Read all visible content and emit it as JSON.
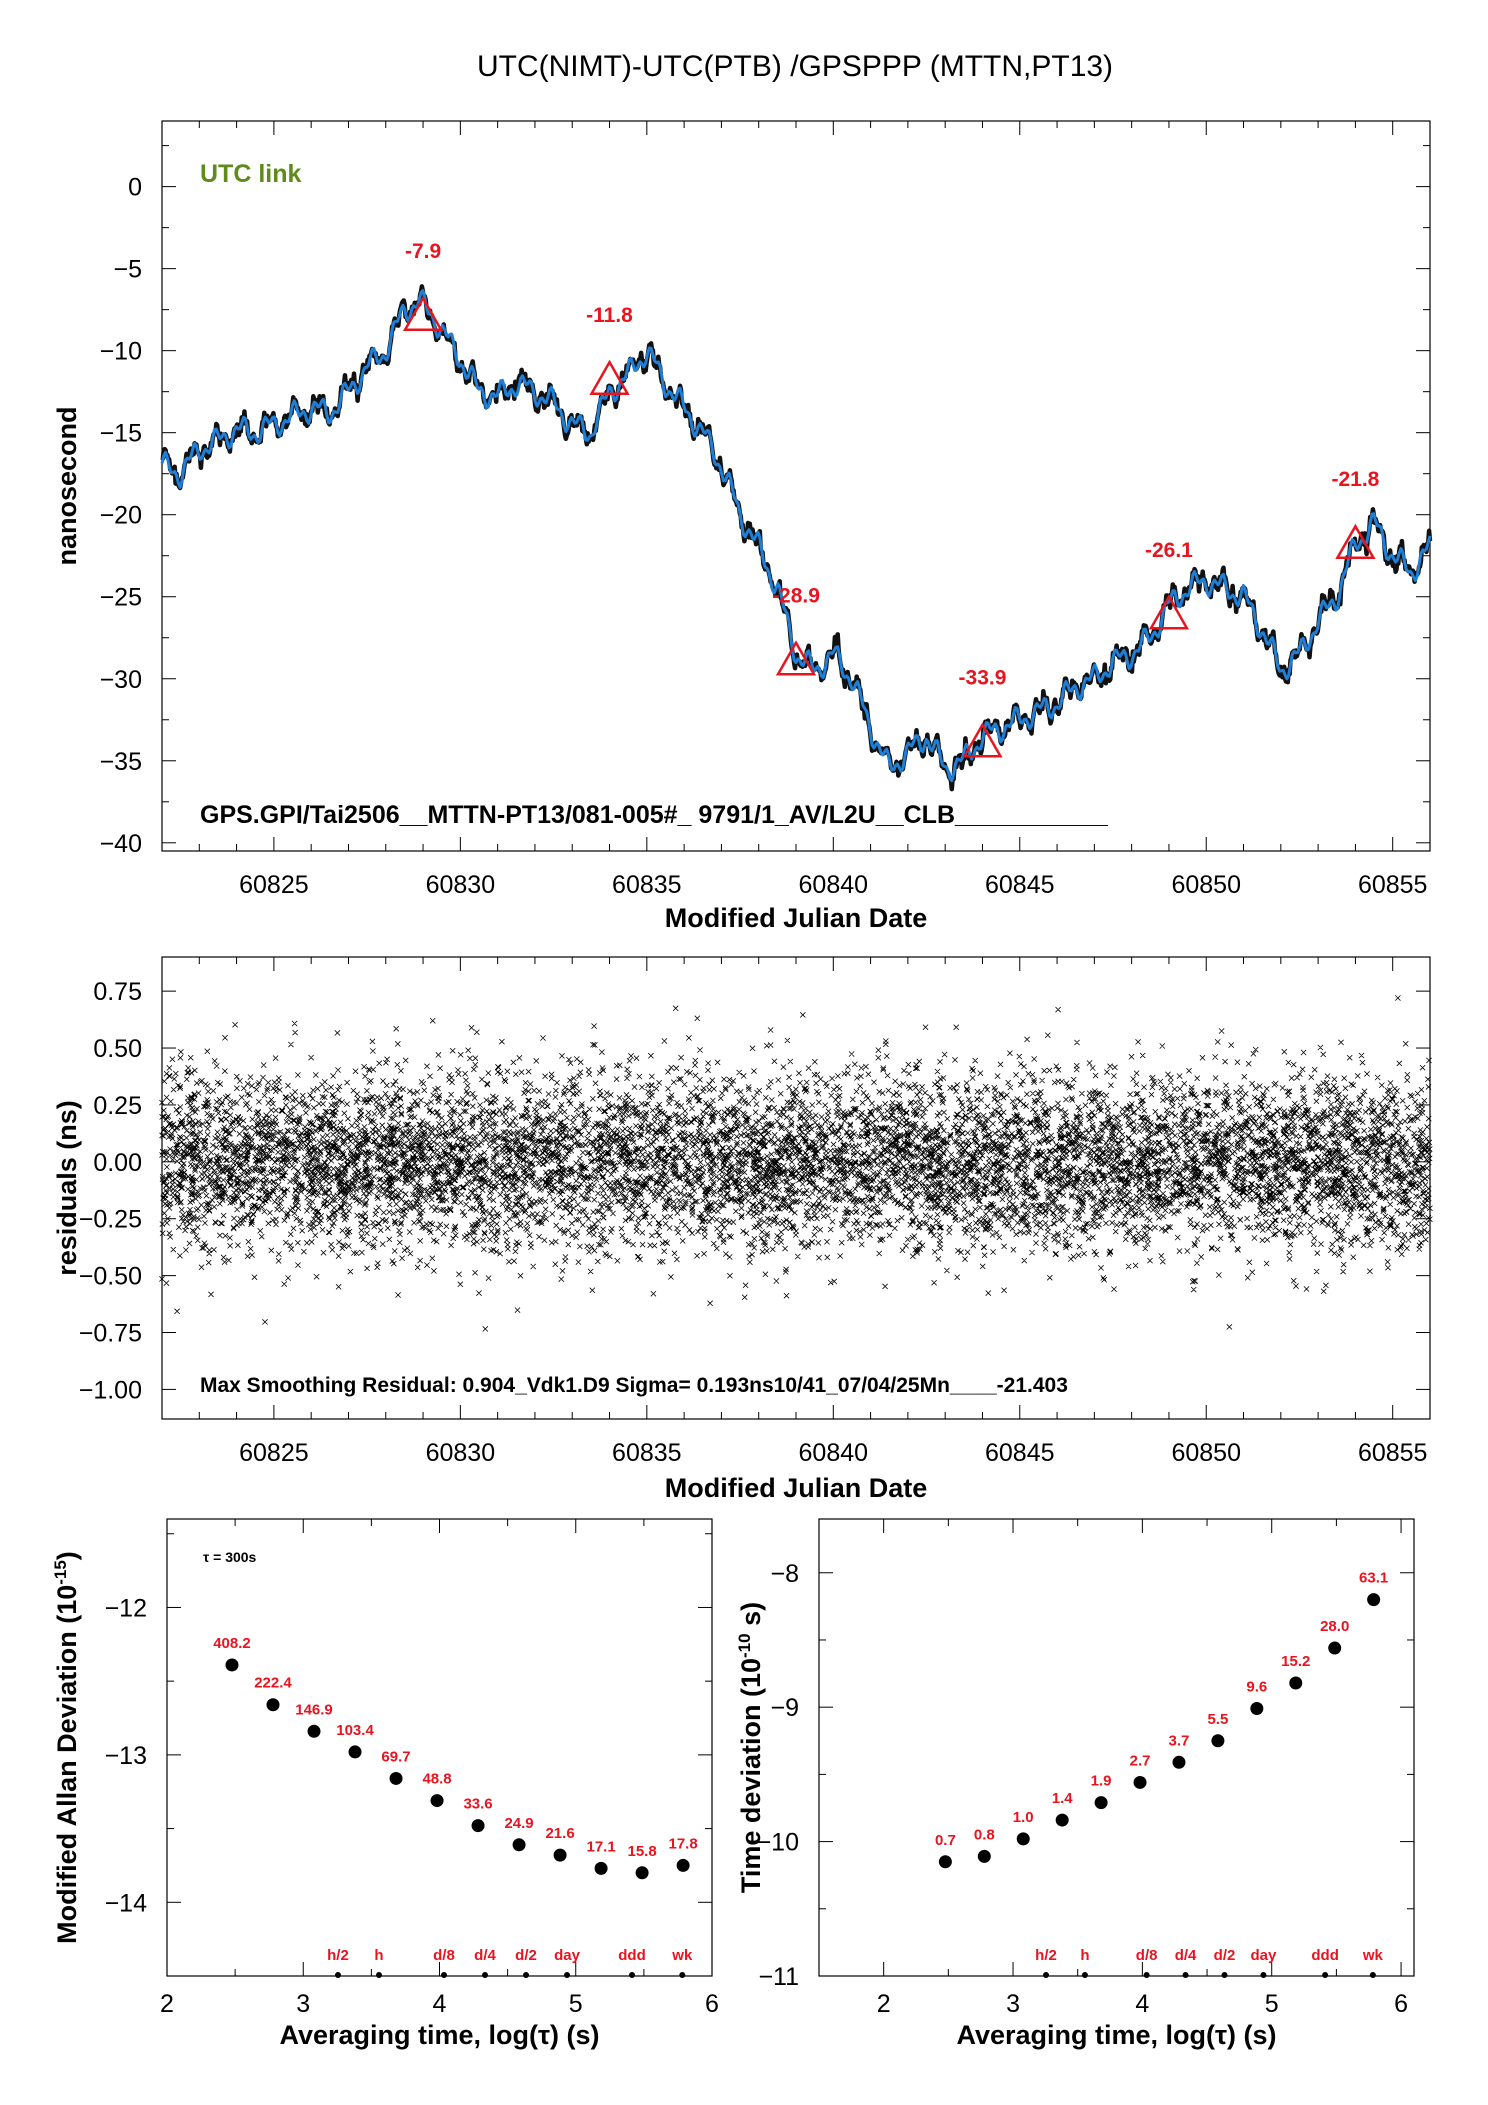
{
  "title": "UTC(NIMT)-UTC(PTB)  /GPSPPP  (MTTN,PT13)",
  "colors": {
    "accent_red": "#e8141e",
    "line_blue": "#1f7fd6",
    "link_green": "#5f8a1c",
    "marker": "#000000"
  },
  "chart_data": [
    {
      "type": "line",
      "name": "main_time_series",
      "annotation": "UTC link",
      "xlabel": "Modified Julian Date",
      "ylabel": "nanosecond",
      "xlim": [
        60822,
        60856
      ],
      "ylim": [
        -40.5,
        4
      ],
      "xticks": [
        60825,
        60830,
        60835,
        60840,
        60845,
        60850,
        60855
      ],
      "yticks": [
        0,
        -5,
        -10,
        -15,
        -20,
        -25,
        -30,
        -35,
        -40
      ],
      "ytick_labels": [
        "0",
        "−5",
        "−10",
        "−15",
        "−20",
        "−25",
        "−30",
        "−35",
        "−40"
      ],
      "footer": "GPS.GPI/Tai2506__MTTN-PT13/081-005#_  9791/1_AV/L2U__CLB___________",
      "series_points": [
        [
          60822.0,
          -17.0
        ],
        [
          60822.5,
          -17.5
        ],
        [
          60823.0,
          -16.0
        ],
        [
          60823.5,
          -15.5
        ],
        [
          60824.0,
          -14.8
        ],
        [
          60824.5,
          -15.0
        ],
        [
          60825.0,
          -14.5
        ],
        [
          60825.5,
          -14.0
        ],
        [
          60826.0,
          -13.5
        ],
        [
          60826.5,
          -13.8
        ],
        [
          60827.0,
          -12.5
        ],
        [
          60827.5,
          -11.0
        ],
        [
          60828.0,
          -10.0
        ],
        [
          60828.5,
          -7.5
        ],
        [
          60828.9,
          -7.0
        ],
        [
          60829.3,
          -8.0
        ],
        [
          60829.7,
          -9.5
        ],
        [
          60830.0,
          -10.5
        ],
        [
          60830.5,
          -12.5
        ],
        [
          60831.0,
          -12.8
        ],
        [
          60831.5,
          -12.0
        ],
        [
          60832.0,
          -12.5
        ],
        [
          60832.5,
          -13.2
        ],
        [
          60833.0,
          -14.5
        ],
        [
          60833.5,
          -15.0
        ],
        [
          60834.0,
          -12.5
        ],
        [
          60834.5,
          -11.5
        ],
        [
          60835.0,
          -10.0
        ],
        [
          60835.5,
          -12.0
        ],
        [
          60836.0,
          -13.5
        ],
        [
          60836.5,
          -15.0
        ],
        [
          60837.0,
          -17.0
        ],
        [
          60837.5,
          -20.0
        ],
        [
          60838.0,
          -22.0
        ],
        [
          60838.5,
          -24.5
        ],
        [
          60839.0,
          -28.5
        ],
        [
          60839.5,
          -29.5
        ],
        [
          60840.0,
          -28.5
        ],
        [
          60840.5,
          -30.0
        ],
        [
          60841.0,
          -33.0
        ],
        [
          60841.5,
          -35.5
        ],
        [
          60842.0,
          -34.5
        ],
        [
          60842.5,
          -33.5
        ],
        [
          60843.0,
          -35.5
        ],
        [
          60843.5,
          -35.0
        ],
        [
          60844.0,
          -33.5
        ],
        [
          60844.5,
          -33.0
        ],
        [
          60845.0,
          -32.5
        ],
        [
          60845.5,
          -32.0
        ],
        [
          60846.0,
          -31.5
        ],
        [
          60846.5,
          -30.5
        ],
        [
          60847.0,
          -30.0
        ],
        [
          60847.5,
          -29.0
        ],
        [
          60848.0,
          -28.5
        ],
        [
          60848.5,
          -27.5
        ],
        [
          60849.0,
          -25.5
        ],
        [
          60849.5,
          -24.5
        ],
        [
          60850.0,
          -24.0
        ],
        [
          60850.5,
          -24.5
        ],
        [
          60851.0,
          -25.0
        ],
        [
          60851.5,
          -27.0
        ],
        [
          60852.0,
          -29.5
        ],
        [
          60852.5,
          -28.5
        ],
        [
          60853.0,
          -26.5
        ],
        [
          60853.5,
          -25.0
        ],
        [
          60854.0,
          -21.8
        ],
        [
          60854.5,
          -20.5
        ],
        [
          60855.0,
          -22.5
        ],
        [
          60855.5,
          -23.5
        ],
        [
          60856.0,
          -22.0
        ]
      ],
      "markers": [
        {
          "x": 60829.0,
          "y": -7.9,
          "label": "-7.9"
        },
        {
          "x": 60834.0,
          "y": -11.8,
          "label": "-11.8"
        },
        {
          "x": 60839.0,
          "y": -28.9,
          "label": "-28.9"
        },
        {
          "x": 60844.0,
          "y": -33.9,
          "label": "-33.9"
        },
        {
          "x": 60849.0,
          "y": -26.1,
          "label": "-26.1"
        },
        {
          "x": 60854.0,
          "y": -21.8,
          "label": "-21.8"
        }
      ]
    },
    {
      "type": "scatter",
      "name": "residuals",
      "xlabel": "Modified Julian Date",
      "ylabel": "residuals (ns)",
      "xlim": [
        60822,
        60856
      ],
      "ylim": [
        -1.13,
        0.9
      ],
      "xticks": [
        60825,
        60830,
        60835,
        60840,
        60845,
        60850,
        60855
      ],
      "yticks": [
        0.75,
        0.5,
        0.25,
        0.0,
        -0.25,
        -0.5,
        -0.75,
        -1.0
      ],
      "ytick_labels": [
        "0.75",
        "0.50",
        "0.25",
        "0.00",
        "−0.25",
        "−0.50",
        "−0.75",
        "−1.00"
      ],
      "noise_sigma_ns": 0.193,
      "max_abs_residual_ns": 0.904,
      "footer": "Max Smoothing Residual: 0.904_Vdk1.D9  Sigma= 0.193ns10/41_07/04/25Mn____-21.403"
    },
    {
      "type": "scatter",
      "name": "modified_allan_deviation",
      "xlabel": "Averaging time, log(τ) (s)",
      "ylabel": "Modified Allan Deviation (10",
      "ylabel_superscript": "-15",
      "ylabel_tail": ")",
      "note": "τ = 300s",
      "xlim": [
        2,
        6
      ],
      "ylim": [
        -14.5,
        -11.4
      ],
      "xticks": [
        2,
        3,
        4,
        5,
        6
      ],
      "yticks": [
        -12,
        -13,
        -14
      ],
      "ytick_labels": [
        "−12",
        "−13",
        "−14"
      ],
      "x": [
        2.477,
        2.778,
        3.079,
        3.38,
        3.681,
        3.982,
        4.283,
        4.584,
        4.885,
        5.186,
        5.487,
        5.788
      ],
      "y": [
        -12.39,
        -12.66,
        -12.84,
        -12.98,
        -13.16,
        -13.31,
        -13.48,
        -13.61,
        -13.68,
        -13.77,
        -13.8,
        -13.75
      ],
      "labels": [
        "408.2",
        "222.4",
        "146.9",
        "103.4",
        "69.7",
        "48.8",
        "33.6",
        "24.9",
        "21.6",
        "17.1",
        "15.8",
        "17.8"
      ],
      "period_markers": [
        {
          "x": 3.255,
          "label": "h/2"
        },
        {
          "x": 3.556,
          "label": "h"
        },
        {
          "x": 4.033,
          "label": "d/8"
        },
        {
          "x": 4.334,
          "label": "d/4"
        },
        {
          "x": 4.635,
          "label": "d/2"
        },
        {
          "x": 4.936,
          "label": "day"
        },
        {
          "x": 5.413,
          "label": "ddd"
        },
        {
          "x": 5.782,
          "label": "wk"
        }
      ]
    },
    {
      "type": "scatter",
      "name": "time_deviation",
      "xlabel": "Averaging time, log(τ) (s)",
      "ylabel": "Time deviation (10",
      "ylabel_superscript": "-10",
      "ylabel_tail": " s)",
      "xlim": [
        1.5,
        6.1
      ],
      "ylim": [
        -11.0,
        -7.6
      ],
      "xticks": [
        2,
        3,
        4,
        5,
        6
      ],
      "yticks": [
        -8,
        -9,
        -10,
        -11
      ],
      "ytick_labels": [
        "−8",
        "−9",
        "−10",
        "−11"
      ],
      "x": [
        2.477,
        2.778,
        3.079,
        3.38,
        3.681,
        3.982,
        4.283,
        4.584,
        4.885,
        5.186,
        5.487,
        5.788
      ],
      "y": [
        -10.15,
        -10.11,
        -9.98,
        -9.84,
        -9.71,
        -9.56,
        -9.41,
        -9.25,
        -9.01,
        -8.82,
        -8.56,
        -8.2
      ],
      "labels": [
        "0.7",
        "0.8",
        "1.0",
        "1.4",
        "1.9",
        "2.7",
        "3.7",
        "5.5",
        "9.6",
        "15.2",
        "28.0",
        "63.1"
      ],
      "period_markers": [
        {
          "x": 3.255,
          "label": "h/2"
        },
        {
          "x": 3.556,
          "label": "h"
        },
        {
          "x": 4.033,
          "label": "d/8"
        },
        {
          "x": 4.334,
          "label": "d/4"
        },
        {
          "x": 4.635,
          "label": "d/2"
        },
        {
          "x": 4.936,
          "label": "day"
        },
        {
          "x": 5.413,
          "label": "ddd"
        },
        {
          "x": 5.782,
          "label": "wk"
        }
      ]
    }
  ]
}
